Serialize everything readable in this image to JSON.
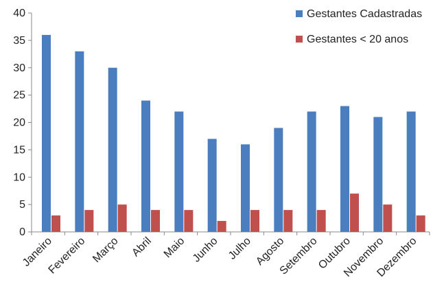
{
  "chart_data": {
    "type": "bar",
    "title": "",
    "xlabel": "",
    "ylabel": "",
    "ylim": [
      0,
      40
    ],
    "yticks": [
      0,
      5,
      10,
      15,
      20,
      25,
      30,
      35,
      40
    ],
    "grid": false,
    "legend_position": "top-right",
    "categories": [
      "Janeiro",
      "Fevereiro",
      "Março",
      "Abril",
      "Maio",
      "Junho",
      "Julho",
      "Agosto",
      "Setembro",
      "Outubro",
      "Novembro",
      "Dezembro"
    ],
    "series": [
      {
        "name": "Gestantes Cadastradas",
        "color": "#4a7ebf",
        "values": [
          36,
          33,
          30,
          24,
          22,
          17,
          16,
          19,
          22,
          23,
          21,
          22
        ]
      },
      {
        "name": "Gestantes < 20 anos",
        "color": "#c0504d",
        "values": [
          3,
          4,
          5,
          4,
          4,
          2,
          4,
          4,
          4,
          7,
          5,
          3
        ]
      }
    ]
  }
}
